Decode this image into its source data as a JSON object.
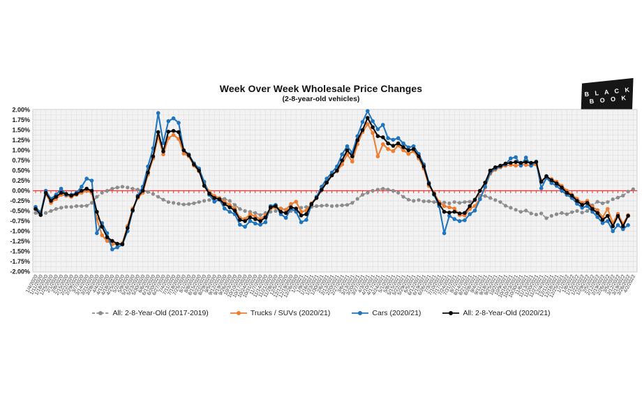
{
  "logo": {
    "line1": "B L A C K",
    "line2": "B O O K",
    "bg": "#161616",
    "text_color": "#ffffff"
  },
  "chart_data": {
    "type": "line",
    "title": "Week Over Week Wholesale Price Changes",
    "subtitle": "(2-8-year-old vehicles)",
    "grid": "on",
    "legend_position": "bottom",
    "plot_colors": {
      "background": "#f3f3f3",
      "gridline": "#e2e2e2",
      "border": "#c8c8c8",
      "zero_line": "#ff2f2f"
    },
    "y_axis": {
      "min": -2.0,
      "max": 2.0,
      "tick_step": 0.25,
      "unit": "percent",
      "tick_labels": [
        "2.00%",
        "1.75%",
        "1.50%",
        "1.25%",
        "1.00%",
        "0.75%",
        "0.50%",
        "0.25%",
        "0.00%",
        "-0.25%",
        "-0.50%",
        "-0.75%",
        "-1.00%",
        "-1.25%",
        "-1.50%",
        "-1.75%",
        "-2.00%"
      ]
    },
    "x_axis": {
      "labels": [
        "1/4/2020",
        "1/11/2020",
        "1/18/2020",
        "1/25/2020",
        "2/1/2020",
        "2/8/2020",
        "2/15/2020",
        "2/22/2020",
        "2/29/2020",
        "3/7/2020",
        "3/14/2020",
        "3/21/2020",
        "3/28/2020",
        "4/4/2020",
        "4/11/2020",
        "4/18/2020",
        "4/25/2020",
        "5/2/2020",
        "5/9/2020",
        "5/16/2020",
        "5/23/2020",
        "5/30/2020",
        "6/6/2020",
        "6/13/2020",
        "6/20/2020",
        "6/27/2020",
        "7/4/2020",
        "7/11/2020",
        "7/18/2020",
        "7/25/2020",
        "8/1/2020",
        "8/8/2020",
        "8/15/2020",
        "8/22/2020",
        "8/29/2020",
        "9/5/2020",
        "9/12/2020",
        "9/19/2020",
        "9/26/2020",
        "10/3/2020",
        "10/10/2020",
        "10/17/2020",
        "10/24/2020",
        "10/31/2020",
        "11/7/2020",
        "11/14/2020",
        "11/21/2020",
        "11/28/2020",
        "12/5/2020",
        "12/12/2020",
        "12/19/2020",
        "12/26/2020",
        "1/2/2021",
        "1/9/2021",
        "1/16/2021",
        "1/23/2021",
        "1/30/2021",
        "2/6/2021",
        "2/13/2021",
        "2/20/2021",
        "2/27/2021",
        "3/6/2021",
        "3/13/2021",
        "3/20/2021",
        "3/27/2021",
        "4/3/2021",
        "4/10/2021",
        "4/17/2021",
        "4/24/2021",
        "5/1/2021",
        "5/8/2021",
        "5/15/2021",
        "5/22/2021",
        "5/29/2021",
        "6/5/2021",
        "6/12/2021",
        "6/19/2021",
        "6/26/2021",
        "7/3/2021",
        "7/10/2021",
        "7/17/2021",
        "7/24/2021",
        "7/31/2021",
        "8/7/2021",
        "8/14/2021",
        "8/21/2021",
        "8/28/2021",
        "9/4/2021",
        "9/11/2021",
        "9/18/2021",
        "9/25/2021",
        "10/2/2021",
        "10/9/2021",
        "10/16/2021",
        "10/23/2021",
        "10/30/2021",
        "11/6/2021",
        "11/13/2021",
        "11/20/2021",
        "11/27/2021",
        "12/4/2021",
        "12/11/2021",
        "12/18/2021",
        "12/25/2021",
        "1/1/2022",
        "1/8/2022",
        "1/15/2022",
        "1/22/2022",
        "1/29/2022",
        "2/5/2022",
        "2/12/2022",
        "2/19/2022",
        "2/26/2022",
        "3/5/2022",
        "3/12/2022",
        "3/19/2022",
        "3/26/2022",
        "4/2/2022"
      ]
    },
    "series": [
      {
        "name": "All: 2-8-Year-Old (2017-2019)",
        "color": "#8c8c8c",
        "line_style": "dashed",
        "marker": "circle",
        "values": [
          -0.55,
          -0.6,
          -0.55,
          -0.5,
          -0.45,
          -0.42,
          -0.4,
          -0.4,
          -0.38,
          -0.38,
          -0.37,
          -0.3,
          -0.15,
          -0.05,
          0.0,
          0.05,
          0.08,
          0.1,
          0.08,
          0.05,
          0.03,
          0.0,
          -0.03,
          -0.08,
          -0.15,
          -0.22,
          -0.28,
          -0.3,
          -0.32,
          -0.34,
          -0.33,
          -0.31,
          -0.28,
          -0.25,
          -0.23,
          -0.2,
          -0.19,
          -0.2,
          -0.25,
          -0.35,
          -0.45,
          -0.5,
          -0.52,
          -0.55,
          -0.6,
          -0.55,
          -0.52,
          -0.5,
          -0.52,
          -0.55,
          -0.5,
          -0.45,
          -0.42,
          -0.4,
          -0.4,
          -0.38,
          -0.37,
          -0.36,
          -0.38,
          -0.37,
          -0.36,
          -0.35,
          -0.3,
          -0.2,
          -0.1,
          -0.05,
          0.0,
          0.03,
          0.05,
          0.03,
          0.0,
          -0.05,
          -0.15,
          -0.22,
          -0.25,
          -0.23,
          -0.26,
          -0.26,
          -0.28,
          -0.3,
          -0.29,
          -0.31,
          -0.28,
          -0.3,
          -0.28,
          -0.27,
          -0.24,
          -0.12,
          -0.13,
          -0.18,
          -0.23,
          -0.28,
          -0.37,
          -0.42,
          -0.47,
          -0.52,
          -0.49,
          -0.56,
          -0.59,
          -0.56,
          -0.68,
          -0.62,
          -0.58,
          -0.55,
          -0.58,
          -0.53,
          -0.5,
          -0.54,
          -0.5,
          -0.36,
          -0.27,
          -0.31,
          -0.28,
          -0.21,
          -0.17,
          -0.12,
          -0.02,
          0.04
        ]
      },
      {
        "name": "Trucks / SUVs (2020/21)",
        "color": "#ED7D31",
        "line_style": "solid",
        "marker": "circle",
        "values": [
          -0.45,
          -0.52,
          -0.08,
          -0.3,
          -0.2,
          -0.1,
          -0.12,
          -0.15,
          -0.1,
          -0.05,
          0.0,
          -0.05,
          -0.7,
          -1.1,
          -1.24,
          -1.32,
          -1.32,
          -1.3,
          -0.87,
          -0.44,
          -0.18,
          -0.05,
          0.4,
          0.8,
          1.35,
          0.9,
          1.3,
          1.38,
          1.28,
          0.92,
          0.85,
          0.62,
          0.48,
          0.18,
          -0.02,
          -0.13,
          -0.18,
          -0.27,
          -0.35,
          -0.44,
          -0.67,
          -0.7,
          -0.58,
          -0.64,
          -0.7,
          -0.61,
          -0.44,
          -0.41,
          -0.44,
          -0.47,
          -0.33,
          -0.27,
          -0.52,
          -0.49,
          -0.31,
          -0.16,
          0.05,
          0.22,
          0.4,
          0.48,
          0.65,
          0.9,
          0.72,
          1.15,
          1.45,
          1.65,
          1.43,
          0.85,
          1.15,
          1.03,
          0.98,
          1.12,
          1.0,
          0.91,
          0.98,
          0.8,
          0.55,
          0.12,
          -0.05,
          -0.28,
          -0.38,
          -0.41,
          -0.44,
          -0.6,
          -0.61,
          -0.45,
          -0.38,
          -0.19,
          0.08,
          0.42,
          0.52,
          0.58,
          0.62,
          0.64,
          0.62,
          0.65,
          0.64,
          0.62,
          0.65,
          0.25,
          0.33,
          0.29,
          0.22,
          0.12,
          0.0,
          -0.1,
          -0.2,
          -0.3,
          -0.25,
          -0.4,
          -0.48,
          -0.66,
          -0.45,
          -0.8,
          -0.57,
          -0.82,
          -0.6,
          null
        ]
      },
      {
        "name": "Cars (2020/21)",
        "color": "#1F74BD",
        "line_style": "solid",
        "marker": "circle",
        "values": [
          -0.4,
          -0.55,
          0.0,
          -0.2,
          -0.1,
          0.05,
          -0.1,
          -0.1,
          -0.05,
          0.1,
          0.3,
          0.25,
          -1.05,
          -0.8,
          -1.05,
          -1.45,
          -1.4,
          -1.33,
          -1.0,
          -0.5,
          -0.12,
          0.1,
          0.6,
          1.05,
          1.92,
          1.18,
          1.72,
          1.79,
          1.68,
          1.0,
          0.9,
          0.68,
          0.55,
          0.22,
          -0.1,
          -0.27,
          -0.22,
          -0.44,
          -0.52,
          -0.58,
          -0.84,
          -0.89,
          -0.75,
          -0.81,
          -0.84,
          -0.78,
          -0.38,
          -0.35,
          -0.58,
          -0.67,
          -0.44,
          -0.52,
          -0.78,
          -0.72,
          -0.35,
          -0.15,
          0.1,
          0.3,
          0.45,
          0.6,
          0.9,
          1.1,
          0.94,
          1.35,
          1.7,
          1.97,
          1.72,
          1.52,
          1.63,
          1.3,
          1.26,
          1.3,
          1.17,
          1.07,
          1.1,
          0.91,
          0.65,
          0.2,
          -0.1,
          -0.38,
          -1.05,
          -0.62,
          -0.7,
          -0.75,
          -0.73,
          -0.58,
          -0.49,
          -0.21,
          0.1,
          0.45,
          0.55,
          0.6,
          0.65,
          0.8,
          0.83,
          0.62,
          0.82,
          0.62,
          0.72,
          0.06,
          0.32,
          0.19,
          0.12,
          0.0,
          -0.1,
          -0.18,
          -0.32,
          -0.42,
          -0.38,
          -0.52,
          -0.65,
          -0.8,
          -0.75,
          -1.0,
          -0.85,
          -0.95,
          -0.85,
          null
        ]
      },
      {
        "name": "All: 2-8-Year-Old (2020/21)",
        "color": "#0a0a0a",
        "line_style": "solid",
        "marker": "circle",
        "values": [
          -0.45,
          -0.6,
          -0.05,
          -0.25,
          -0.15,
          -0.05,
          -0.08,
          -0.12,
          -0.08,
          0.0,
          0.05,
          0.0,
          -0.52,
          -0.89,
          -1.15,
          -1.24,
          -1.31,
          -1.32,
          -0.92,
          -0.48,
          -0.15,
          0.0,
          0.45,
          0.85,
          1.45,
          0.97,
          1.46,
          1.48,
          1.45,
          1.0,
          0.88,
          0.65,
          0.5,
          0.12,
          -0.07,
          -0.18,
          -0.21,
          -0.33,
          -0.41,
          -0.49,
          -0.72,
          -0.75,
          -0.66,
          -0.7,
          -0.75,
          -0.66,
          -0.41,
          -0.38,
          -0.52,
          -0.55,
          -0.41,
          -0.44,
          -0.61,
          -0.58,
          -0.33,
          -0.18,
          0.02,
          0.2,
          0.38,
          0.5,
          0.75,
          1.0,
          0.85,
          1.25,
          1.5,
          1.8,
          1.57,
          1.35,
          1.32,
          1.17,
          1.11,
          1.17,
          1.08,
          1.0,
          1.03,
          0.85,
          0.6,
          0.17,
          -0.08,
          -0.33,
          -0.52,
          -0.54,
          -0.52,
          -0.56,
          -0.55,
          -0.38,
          -0.22,
          0.0,
          0.2,
          0.5,
          0.58,
          0.62,
          0.67,
          0.69,
          0.71,
          0.69,
          0.71,
          0.69,
          0.71,
          0.22,
          0.36,
          0.26,
          0.18,
          0.08,
          -0.05,
          -0.12,
          -0.25,
          -0.35,
          -0.3,
          -0.45,
          -0.55,
          -0.72,
          -0.62,
          -0.88,
          -0.62,
          -0.88,
          -0.62,
          null
        ]
      }
    ]
  }
}
